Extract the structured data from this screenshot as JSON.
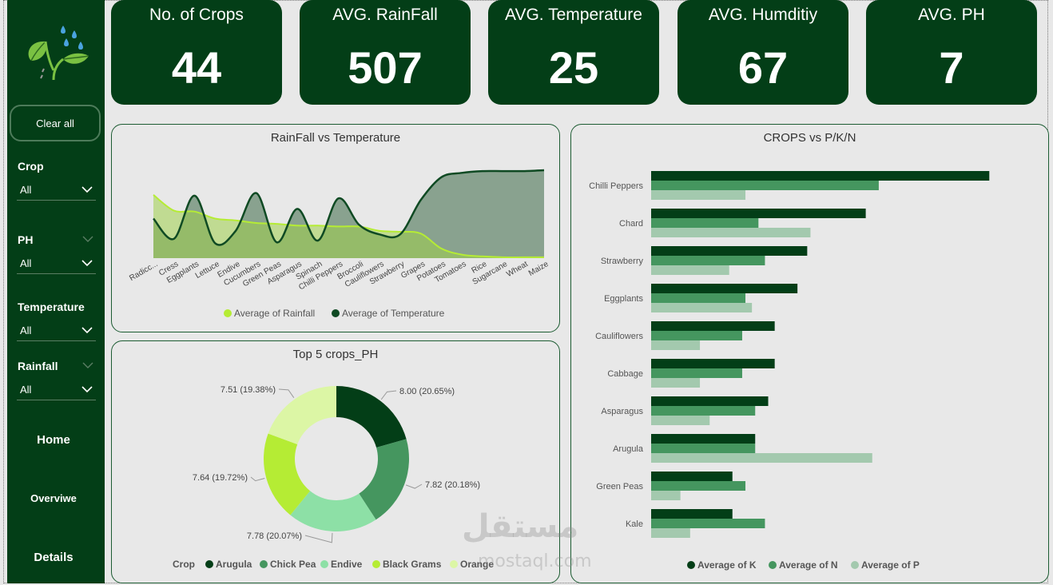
{
  "sidebar": {
    "clear_label": "Clear all",
    "filters": [
      {
        "label": "Crop",
        "value": "All"
      },
      {
        "label": "PH",
        "value": "All"
      },
      {
        "label": "Temperature",
        "value": "All"
      },
      {
        "label": "Rainfall",
        "value": "All"
      }
    ],
    "nav": [
      "Home",
      "Overviwe",
      "Details"
    ]
  },
  "kpis": [
    {
      "title": "No. of Crops",
      "value": "44"
    },
    {
      "title": "AVG. RainFall",
      "value": "507"
    },
    {
      "title": "AVG. Temperature",
      "value": "25"
    },
    {
      "title": "AVG. Humditiy",
      "value": "67"
    },
    {
      "title": "AVG. PH",
      "value": "7"
    }
  ],
  "colors": {
    "dark_green": "#033e17",
    "rainfall": "#b5ec34",
    "temperature": "#0f4a23",
    "k": "#033e17",
    "n": "#45965f",
    "p": "#a3c9ae"
  },
  "watermark": {
    "arabic": "مستقل",
    "latin": "mostaql.com"
  },
  "chart_data": [
    {
      "type": "area",
      "title": "RainFall vs Temperature",
      "categories": [
        "Radicc...",
        "Cress",
        "Eggplants",
        "Lettuce",
        "Endive",
        "Cucumbers",
        "Green Peas",
        "Asparagus",
        "Spinach",
        "Chilli Peppers",
        "Broccoli",
        "Cauliflowers",
        "Strawberry",
        "Grapes",
        "Potatoes",
        "Tomatoes",
        "Rice",
        "Sugarcane",
        "Wheat",
        "Maize"
      ],
      "series": [
        {
          "name": "Average of Rainfall",
          "values": [
            72,
            54,
            53,
            45,
            43,
            40,
            39,
            37,
            37,
            36,
            36,
            31,
            30,
            28,
            11,
            4,
            2,
            1,
            1,
            1
          ]
        },
        {
          "name": "Average of Temperature",
          "values": [
            45,
            22,
            71,
            17,
            31,
            74,
            18,
            56,
            20,
            68,
            38,
            27,
            27,
            66,
            92,
            97,
            99,
            99,
            99,
            100
          ]
        }
      ],
      "legend": "bottom"
    },
    {
      "type": "pie",
      "title": "Top 5 crops_PH",
      "legend_title": "Crop",
      "slices": [
        {
          "name": "Arugula",
          "value": 8.0,
          "label": "8.00 (20.65%)",
          "color": "#033e17"
        },
        {
          "name": "Chick Pea",
          "value": 7.82,
          "label": "7.82 (20.18%)",
          "color": "#45965f"
        },
        {
          "name": "Endive",
          "value": 7.78,
          "label": "7.78 (20.07%)",
          "color": "#8de0a6"
        },
        {
          "name": "Black Grams",
          "value": 7.64,
          "label": "7.64 (19.72%)",
          "color": "#b5ec34"
        },
        {
          "name": "Orange",
          "value": 7.51,
          "label": "7.51 (19.38%)",
          "color": "#dcf6a5"
        }
      ],
      "legend": "bottom"
    },
    {
      "type": "bar",
      "orientation": "horizontal",
      "title": "CROPS vs P/K/N",
      "categories": [
        "Chilli Peppers",
        "Chard",
        "Strawberry",
        "Eggplants",
        "Cauliflowers",
        "Cabbage",
        "Asparagus",
        "Arugula",
        "Green Peas",
        "Kale"
      ],
      "series": [
        {
          "name": "Average of K",
          "values": [
            104,
            66,
            48,
            45,
            38,
            38,
            36,
            32,
            25,
            25
          ]
        },
        {
          "name": "Average of N",
          "values": [
            70,
            33,
            35,
            29,
            28,
            28,
            32,
            32,
            29,
            35
          ]
        },
        {
          "name": "Average of P",
          "values": [
            29,
            49,
            24,
            31,
            15,
            15,
            18,
            68,
            9,
            12
          ]
        }
      ],
      "legend": "bottom"
    }
  ]
}
